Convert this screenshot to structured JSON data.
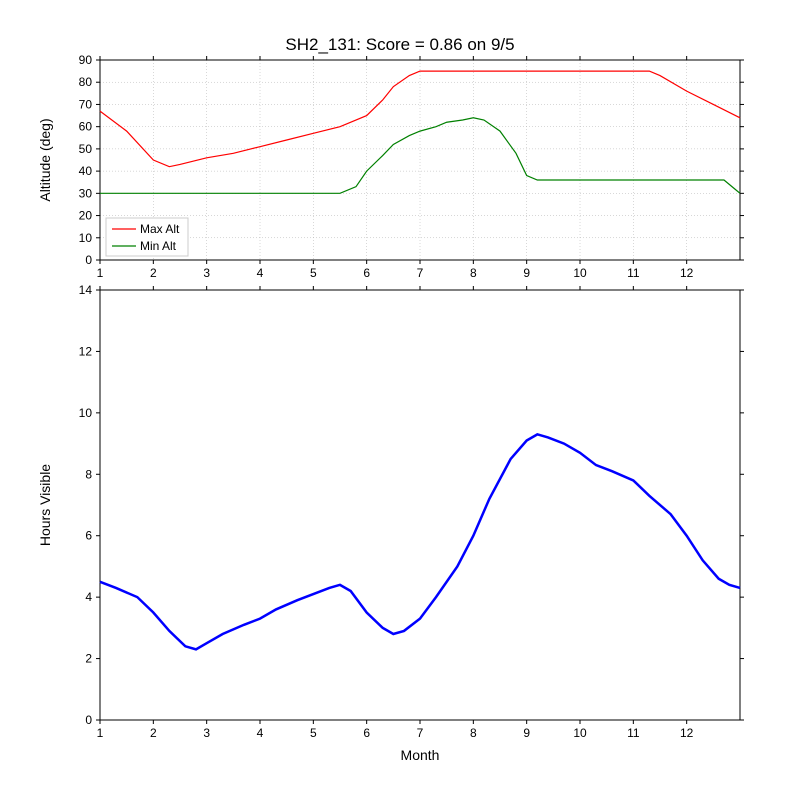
{
  "title": "SH2_131: Score = 0.86 on 9/5",
  "background_color": "#ffffff",
  "top_chart": {
    "type": "line",
    "ylabel": "Altitude (deg)",
    "xlim": [
      1,
      13
    ],
    "ylim": [
      0,
      90
    ],
    "xticks": [
      1,
      2,
      3,
      4,
      5,
      6,
      7,
      8,
      9,
      10,
      11,
      12
    ],
    "yticks": [
      0,
      10,
      20,
      30,
      40,
      50,
      60,
      70,
      80,
      90
    ],
    "grid": true,
    "grid_color": "#b0b0b0",
    "series": [
      {
        "label": "Max Alt",
        "color": "#ff0000",
        "line_width": 1.2,
        "x": [
          1,
          1.5,
          2,
          2.3,
          2.5,
          3,
          3.5,
          4,
          4.5,
          5,
          5.5,
          6,
          6.3,
          6.5,
          6.8,
          7,
          7.5,
          8,
          8.5,
          9,
          9.5,
          10,
          10.5,
          11,
          11.3,
          11.5,
          12,
          12.5,
          13
        ],
        "y": [
          67,
          58,
          45,
          42,
          43,
          46,
          48,
          51,
          54,
          57,
          60,
          65,
          72,
          78,
          83,
          85,
          85,
          85,
          85,
          85,
          85,
          85,
          85,
          85,
          85,
          83,
          76,
          70,
          64
        ]
      },
      {
        "label": "Min Alt",
        "color": "#008000",
        "line_width": 1.2,
        "x": [
          1,
          2,
          3,
          4,
          5,
          5.5,
          5.8,
          6,
          6.3,
          6.5,
          6.8,
          7,
          7.3,
          7.5,
          7.8,
          8,
          8.2,
          8.5,
          8.8,
          9,
          9.2,
          9.5,
          10,
          10.5,
          11,
          11.5,
          12,
          12.5,
          12.7,
          12.9,
          13
        ],
        "y": [
          30,
          30,
          30,
          30,
          30,
          30,
          33,
          40,
          47,
          52,
          56,
          58,
          60,
          62,
          63,
          64,
          63,
          58,
          48,
          38,
          36,
          36,
          36,
          36,
          36,
          36,
          36,
          36,
          36,
          32,
          30
        ]
      }
    ],
    "legend": {
      "position": "lower-left",
      "items": [
        "Max Alt",
        "Min Alt"
      ]
    }
  },
  "bottom_chart": {
    "type": "line",
    "xlabel": "Month",
    "ylabel": "Hours Visible",
    "xlim": [
      1,
      13
    ],
    "ylim": [
      0,
      14
    ],
    "xticks": [
      1,
      2,
      3,
      4,
      5,
      6,
      7,
      8,
      9,
      10,
      11,
      12
    ],
    "yticks": [
      0,
      2,
      4,
      6,
      8,
      10,
      12,
      14
    ],
    "grid": false,
    "series": [
      {
        "label": "Hours",
        "color": "#0000ff",
        "line_width": 2.5,
        "x": [
          1,
          1.3,
          1.7,
          2,
          2.3,
          2.6,
          2.8,
          3,
          3.3,
          3.7,
          4,
          4.3,
          4.7,
          5,
          5.3,
          5.5,
          5.7,
          6,
          6.3,
          6.5,
          6.7,
          7,
          7.3,
          7.7,
          8,
          8.3,
          8.7,
          9,
          9.2,
          9.4,
          9.7,
          10,
          10.3,
          10.6,
          11,
          11.3,
          11.7,
          12,
          12.3,
          12.6,
          12.8,
          13
        ],
        "y": [
          4.5,
          4.3,
          4.0,
          3.5,
          2.9,
          2.4,
          2.3,
          2.5,
          2.8,
          3.1,
          3.3,
          3.6,
          3.9,
          4.1,
          4.3,
          4.4,
          4.2,
          3.5,
          3.0,
          2.8,
          2.9,
          3.3,
          4.0,
          5.0,
          6.0,
          7.2,
          8.5,
          9.1,
          9.3,
          9.2,
          9.0,
          8.7,
          8.3,
          8.1,
          7.8,
          7.3,
          6.7,
          6.0,
          5.2,
          4.6,
          4.4,
          4.3
        ]
      }
    ]
  }
}
